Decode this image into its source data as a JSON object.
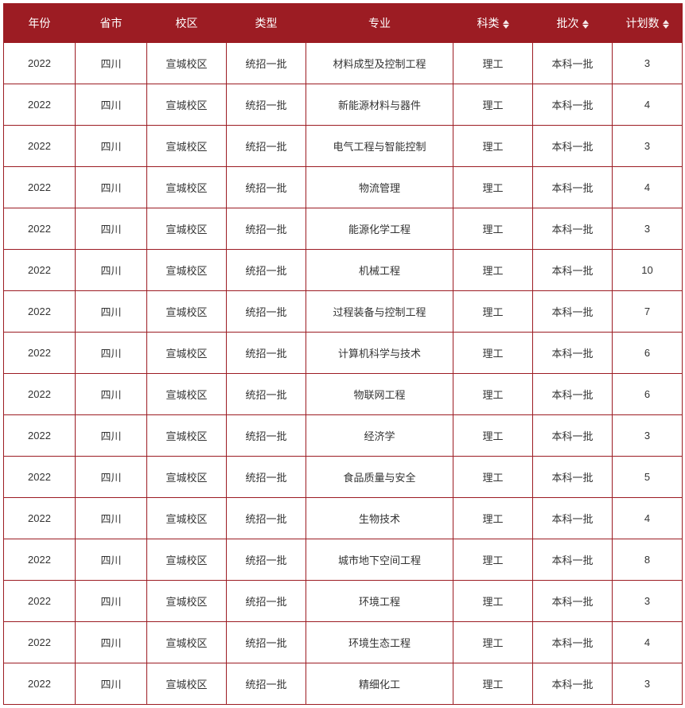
{
  "table": {
    "header_bg": "#9c1c23",
    "header_color": "#ffffff",
    "border_color": "#9c1c23",
    "cell_color": "#333333",
    "columns": [
      {
        "key": "year",
        "label": "年份",
        "sortable": false,
        "width": "col-year"
      },
      {
        "key": "province",
        "label": "省市",
        "sortable": false,
        "width": "col-province"
      },
      {
        "key": "campus",
        "label": "校区",
        "sortable": false,
        "width": "col-campus"
      },
      {
        "key": "type",
        "label": "类型",
        "sortable": false,
        "width": "col-type"
      },
      {
        "key": "major",
        "label": "专业",
        "sortable": false,
        "width": "col-major"
      },
      {
        "key": "subject",
        "label": "科类",
        "sortable": true,
        "width": "col-subject"
      },
      {
        "key": "batch",
        "label": "批次",
        "sortable": true,
        "width": "col-batch"
      },
      {
        "key": "count",
        "label": "计划数",
        "sortable": true,
        "width": "col-count"
      }
    ],
    "rows": [
      {
        "year": "2022",
        "province": "四川",
        "campus": "宣城校区",
        "type": "统招一批",
        "major": "材料成型及控制工程",
        "subject": "理工",
        "batch": "本科一批",
        "count": "3"
      },
      {
        "year": "2022",
        "province": "四川",
        "campus": "宣城校区",
        "type": "统招一批",
        "major": "新能源材料与器件",
        "subject": "理工",
        "batch": "本科一批",
        "count": "4"
      },
      {
        "year": "2022",
        "province": "四川",
        "campus": "宣城校区",
        "type": "统招一批",
        "major": "电气工程与智能控制",
        "subject": "理工",
        "batch": "本科一批",
        "count": "3"
      },
      {
        "year": "2022",
        "province": "四川",
        "campus": "宣城校区",
        "type": "统招一批",
        "major": "物流管理",
        "subject": "理工",
        "batch": "本科一批",
        "count": "4"
      },
      {
        "year": "2022",
        "province": "四川",
        "campus": "宣城校区",
        "type": "统招一批",
        "major": "能源化学工程",
        "subject": "理工",
        "batch": "本科一批",
        "count": "3"
      },
      {
        "year": "2022",
        "province": "四川",
        "campus": "宣城校区",
        "type": "统招一批",
        "major": "机械工程",
        "subject": "理工",
        "batch": "本科一批",
        "count": "10"
      },
      {
        "year": "2022",
        "province": "四川",
        "campus": "宣城校区",
        "type": "统招一批",
        "major": "过程装备与控制工程",
        "subject": "理工",
        "batch": "本科一批",
        "count": "7"
      },
      {
        "year": "2022",
        "province": "四川",
        "campus": "宣城校区",
        "type": "统招一批",
        "major": "计算机科学与技术",
        "subject": "理工",
        "batch": "本科一批",
        "count": "6"
      },
      {
        "year": "2022",
        "province": "四川",
        "campus": "宣城校区",
        "type": "统招一批",
        "major": "物联网工程",
        "subject": "理工",
        "batch": "本科一批",
        "count": "6"
      },
      {
        "year": "2022",
        "province": "四川",
        "campus": "宣城校区",
        "type": "统招一批",
        "major": "经济学",
        "subject": "理工",
        "batch": "本科一批",
        "count": "3"
      },
      {
        "year": "2022",
        "province": "四川",
        "campus": "宣城校区",
        "type": "统招一批",
        "major": "食品质量与安全",
        "subject": "理工",
        "batch": "本科一批",
        "count": "5"
      },
      {
        "year": "2022",
        "province": "四川",
        "campus": "宣城校区",
        "type": "统招一批",
        "major": "生物技术",
        "subject": "理工",
        "batch": "本科一批",
        "count": "4"
      },
      {
        "year": "2022",
        "province": "四川",
        "campus": "宣城校区",
        "type": "统招一批",
        "major": "城市地下空间工程",
        "subject": "理工",
        "batch": "本科一批",
        "count": "8"
      },
      {
        "year": "2022",
        "province": "四川",
        "campus": "宣城校区",
        "type": "统招一批",
        "major": "环境工程",
        "subject": "理工",
        "batch": "本科一批",
        "count": "3"
      },
      {
        "year": "2022",
        "province": "四川",
        "campus": "宣城校区",
        "type": "统招一批",
        "major": "环境生态工程",
        "subject": "理工",
        "batch": "本科一批",
        "count": "4"
      },
      {
        "year": "2022",
        "province": "四川",
        "campus": "宣城校区",
        "type": "统招一批",
        "major": "精细化工",
        "subject": "理工",
        "batch": "本科一批",
        "count": "3"
      }
    ]
  }
}
